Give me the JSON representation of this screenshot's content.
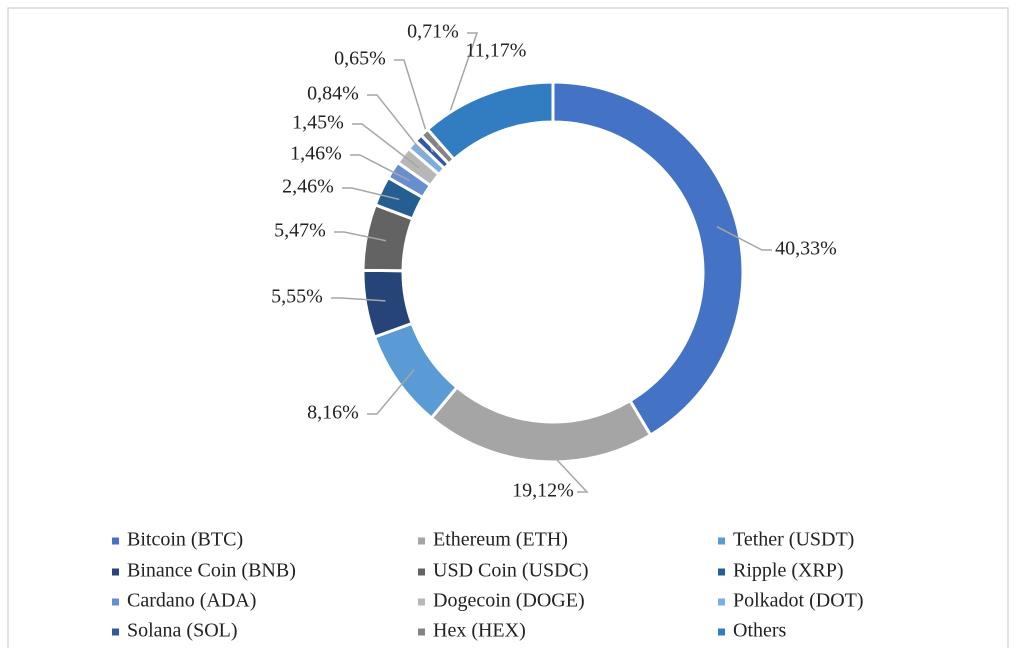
{
  "chart_data": {
    "type": "donut",
    "categories": [
      "Bitcoin (BTC)",
      "Ethereum (ETH)",
      "Tether (USDT)",
      "Binance Coin (BNB)",
      "USD Coin (USDC)",
      "Ripple (XRP)",
      "Cardano (ADA)",
      "Dogecoin (DOGE)",
      "Polkadot (DOT)",
      "Solana (SOL)",
      "Hex (HEX)",
      "Others"
    ],
    "values": [
      40.33,
      19.12,
      8.16,
      5.55,
      5.47,
      2.46,
      1.46,
      1.45,
      0.84,
      0.65,
      0.71,
      11.17
    ],
    "value_labels": [
      "40,33%",
      "19,12%",
      "8,16%",
      "5,55%",
      "5,47%",
      "2,46%",
      "1,46%",
      "1,45%",
      "0,84%",
      "0,65%",
      "0,71%",
      "11,17%"
    ],
    "colors": [
      "#4472c4",
      "#a5a5a5",
      "#5b9bd5",
      "#264478",
      "#636363",
      "#255e91",
      "#698ed0",
      "#b7b7b7",
      "#7cafdd",
      "#335aa1",
      "#848484",
      "#327dc2"
    ],
    "legend": "bottom"
  }
}
